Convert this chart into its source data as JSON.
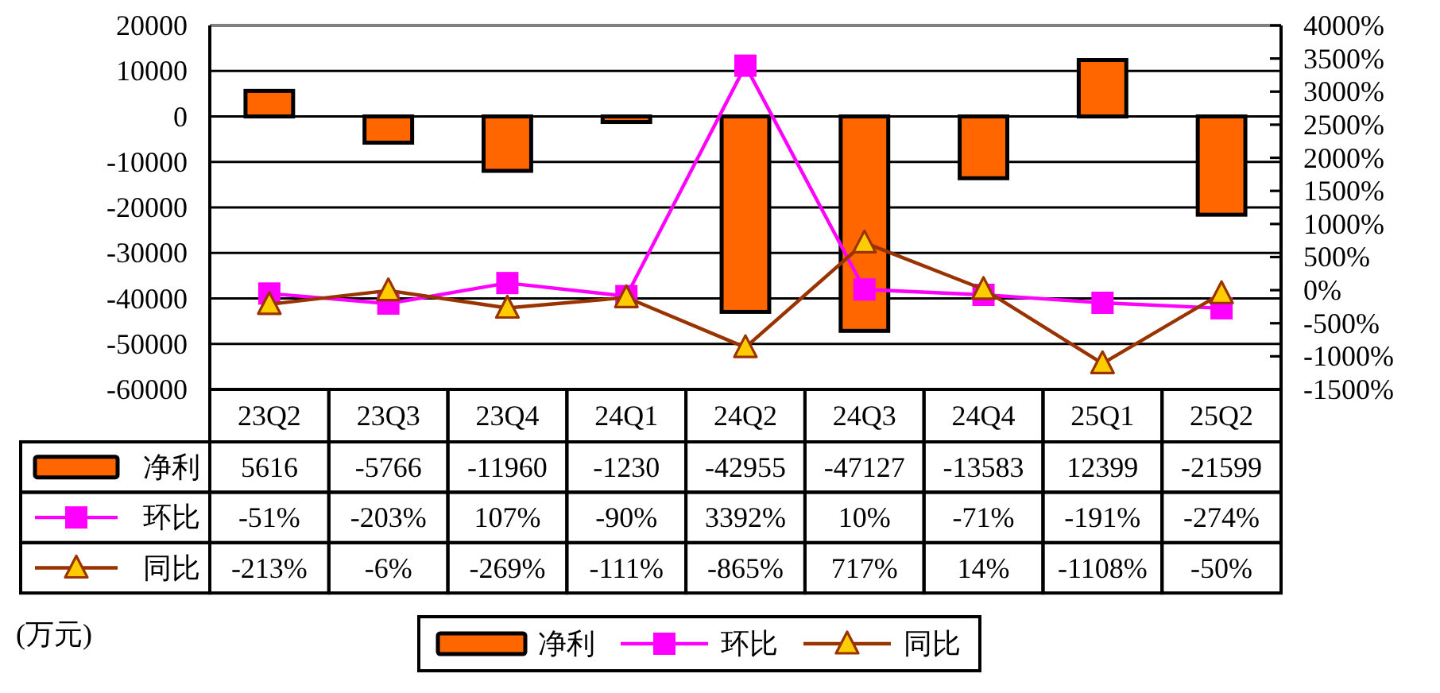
{
  "chart_data": {
    "type": "bar",
    "categories": [
      "23Q2",
      "23Q3",
      "23Q4",
      "24Q1",
      "24Q2",
      "24Q3",
      "24Q4",
      "25Q1",
      "25Q2"
    ],
    "series": [
      {
        "name": "净利",
        "color": "#ff6600",
        "values": [
          5616,
          -5766,
          -11960,
          -1230,
          -42955,
          -47127,
          -13583,
          12399,
          -21599
        ],
        "value_labels": [
          "5616",
          "-5766",
          "-11960",
          "-1230",
          "-42955",
          "-47127",
          "-13583",
          "12399",
          "-21599"
        ]
      },
      {
        "name": "环比",
        "type": "line",
        "axis": "y2",
        "color": "#ff00ff",
        "marker": "square",
        "values": [
          -51,
          -203,
          107,
          -90,
          3392,
          10,
          -71,
          -191,
          -274
        ],
        "value_labels": [
          "-51%",
          "-203%",
          "107%",
          "-90%",
          "3392%",
          "10%",
          "-71%",
          "-191%",
          "-274%"
        ]
      },
      {
        "name": "同比",
        "type": "line",
        "axis": "y2",
        "color": "#993300",
        "marker": "triangle",
        "colors": [
          "#ffcc00",
          "#ffcc00",
          "#ffcc00",
          "#ffcc00",
          "#ffcc00",
          "#ffcc00",
          "#ffcc00",
          "#ffcc00",
          "#ffcc00"
        ],
        "values": [
          -213,
          -6,
          -269,
          -111,
          -865,
          717,
          14,
          -1108,
          -50
        ],
        "value_labels": [
          "-213%",
          "-6%",
          "-269%",
          "-111%",
          "-865%",
          "717%",
          "14%",
          "-1108%",
          "-50%"
        ]
      }
    ],
    "ylim": [
      -60000,
      20000
    ],
    "yticks": [
      -60000,
      -50000,
      -40000,
      -30000,
      -20000,
      -10000,
      0,
      10000,
      20000
    ],
    "y2lim": [
      -1500,
      4000
    ],
    "y2ticks": [
      {
        "value": -1500,
        "label": "-1500%"
      },
      {
        "value": -1000,
        "label": "-1000%"
      },
      {
        "value": -500,
        "label": "-500%"
      },
      {
        "value": 0,
        "label": "0%"
      },
      {
        "value": 500,
        "label": "500%"
      },
      {
        "value": 1000,
        "label": "1000%"
      },
      {
        "value": 1500,
        "label": "1500%"
      },
      {
        "value": 2000,
        "label": "2000%"
      },
      {
        "value": 2500,
        "label": "2500%"
      },
      {
        "value": 3000,
        "label": "3000%"
      },
      {
        "value": 3500,
        "label": "3500%"
      },
      {
        "value": 4000,
        "label": "4000%"
      }
    ],
    "grid": "y",
    "legend": "bottom",
    "annotations": [
      "(万元)"
    ]
  }
}
